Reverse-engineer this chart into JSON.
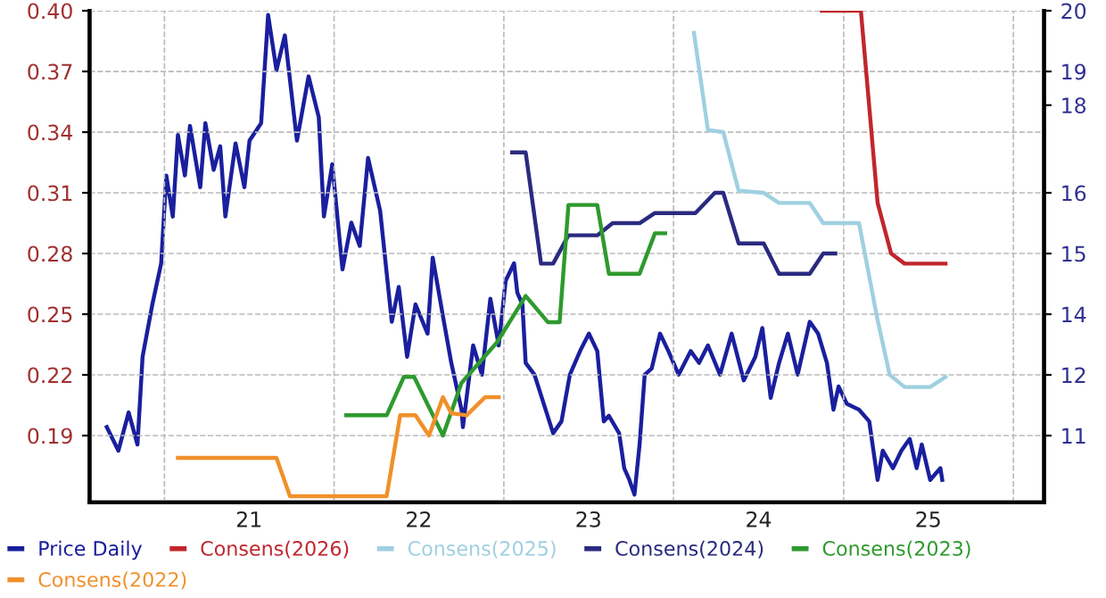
{
  "chart_data": {
    "type": "line",
    "xlim": [
      "2020-07-24",
      "2026-03-08"
    ],
    "xticks": [
      {
        "value": "2021-01-01",
        "label": null
      },
      {
        "value": "2021-07-02",
        "label": "21"
      },
      {
        "value": "2022-01-01",
        "label": null
      },
      {
        "value": "2022-07-02",
        "label": "22"
      },
      {
        "value": "2023-01-01",
        "label": null
      },
      {
        "value": "2023-07-02",
        "label": "23"
      },
      {
        "value": "2024-01-01",
        "label": null
      },
      {
        "value": "2024-07-02",
        "label": "24"
      },
      {
        "value": "2025-01-01",
        "label": null
      },
      {
        "value": "2025-07-02",
        "label": "25"
      },
      {
        "value": "2026-01-01",
        "label": null
      }
    ],
    "ylim": [
      0.157,
      0.4
    ],
    "yticks": [
      0.19,
      0.22,
      0.25,
      0.28,
      0.31,
      0.34,
      0.37,
      {
        "value": 0.4,
        "label": "0.40"
      }
    ],
    "y2lim": [
      9.586,
      20
    ],
    "y2ticks": [
      {
        "value": 11,
        "label": "11"
      },
      {
        "value": 12.286,
        "label": "12"
      },
      {
        "value": 13.571,
        "label": "14"
      },
      {
        "value": 14.857,
        "label": "15"
      },
      {
        "value": 16.143,
        "label": "16"
      },
      {
        "value": 18,
        "label": "18"
      },
      {
        "value": 18.714,
        "label": "19"
      },
      {
        "value": 20,
        "label": "20"
      }
    ],
    "grid": true,
    "legend": "bottom",
    "line_style": "solid",
    "series": [
      {
        "name": "Price Daily",
        "color": "#1a1f9e",
        "axis": "y2",
        "x": [
          "2020-08-30",
          "2020-09-24",
          "2020-10-16",
          "2020-11-04",
          "2020-11-15",
          "2020-12-06",
          "2020-12-25",
          "2021-01-05",
          "2021-01-19",
          "2021-01-30",
          "2021-02-14",
          "2021-02-25",
          "2021-03-19",
          "2021-03-30",
          "2021-04-17",
          "2021-05-01",
          "2021-05-12",
          "2021-06-03",
          "2021-06-22",
          "2021-07-03",
          "2021-07-28",
          "2021-08-12",
          "2021-08-30",
          "2021-09-17",
          "2021-10-13",
          "2021-11-07",
          "2021-11-29",
          "2021-12-10",
          "2021-12-28",
          "2022-01-19",
          "2022-02-07",
          "2022-02-25",
          "2022-03-15",
          "2022-04-10",
          "2022-05-05",
          "2022-05-20",
          "2022-06-07",
          "2022-06-25",
          "2022-07-21",
          "2022-08-01",
          "2022-08-23",
          "2022-09-10",
          "2022-10-02",
          "2022-10-05",
          "2022-10-27",
          "2022-11-15",
          "2022-12-03",
          "2022-12-21",
          "2023-01-05",
          "2023-01-23",
          "2023-01-30",
          "2023-02-10",
          "2023-02-17",
          "2023-03-08",
          "2023-04-17",
          "2023-05-05",
          "2023-05-23",
          "2023-06-14",
          "2023-07-03",
          "2023-07-21",
          "2023-08-04",
          "2023-08-15",
          "2023-09-06",
          "2023-09-17",
          "2023-09-28",
          "2023-10-09",
          "2023-10-20",
          "2023-10-31",
          "2023-11-15",
          "2023-12-03",
          "2023-12-21",
          "2024-01-12",
          "2024-02-07",
          "2024-02-25",
          "2024-03-15",
          "2024-04-10",
          "2024-05-05",
          "2024-05-31",
          "2024-06-25",
          "2024-07-10",
          "2024-07-28",
          "2024-08-15",
          "2024-09-03",
          "2024-09-24",
          "2024-10-20",
          "2024-11-07",
          "2024-11-26",
          "2024-12-10",
          "2024-12-21",
          "2025-01-08",
          "2025-02-03",
          "2025-02-25",
          "2025-03-15",
          "2025-03-26",
          "2025-04-17",
          "2025-05-05",
          "2025-05-23",
          "2025-06-07",
          "2025-06-18",
          "2025-07-06",
          "2025-07-28",
          "2025-08-01"
        ],
        "values": [
          11.18,
          10.68,
          11.49,
          10.81,
          12.67,
          13.78,
          14.65,
          16.51,
          15.64,
          17.37,
          16.51,
          17.56,
          16.26,
          17.62,
          16.63,
          17.13,
          15.64,
          17.19,
          16.26,
          17.25,
          17.62,
          19.91,
          18.74,
          19.48,
          17.25,
          18.61,
          17.74,
          15.64,
          16.75,
          14.52,
          15.51,
          15.02,
          16.88,
          15.76,
          13.41,
          14.15,
          12.67,
          13.78,
          13.16,
          14.77,
          13.53,
          12.54,
          11.55,
          11.18,
          12.91,
          12.29,
          13.9,
          12.91,
          14.28,
          14.65,
          14.03,
          13.78,
          12.54,
          12.29,
          11.05,
          11.3,
          12.29,
          12.79,
          13.16,
          12.79,
          11.3,
          11.42,
          11.05,
          10.31,
          10.06,
          9.75,
          10.81,
          12.29,
          12.42,
          13.16,
          12.79,
          12.29,
          12.79,
          12.54,
          12.91,
          12.29,
          13.16,
          12.17,
          12.67,
          13.28,
          11.8,
          12.54,
          13.16,
          12.29,
          13.41,
          13.16,
          12.54,
          11.55,
          12.04,
          11.67,
          11.55,
          11.3,
          10.06,
          10.68,
          10.31,
          10.68,
          10.93,
          10.31,
          10.81,
          10.06,
          10.31,
          10.06
        ]
      },
      {
        "name": "Consens(2026)",
        "color": "#c0272d",
        "x": [
          "2024-11-15",
          "2025-02-07",
          "2025-03-15",
          "2025-04-13",
          "2025-05-12",
          "2025-08-08"
        ],
        "values": [
          0.4,
          0.4,
          0.305,
          0.28,
          0.275,
          0.275
        ]
      },
      {
        "name": "Consens(2025)",
        "color": "#9fd0e0",
        "x": [
          "2024-02-14",
          "2024-03-15",
          "2024-04-17",
          "2024-05-20",
          "2024-07-13",
          "2024-08-15",
          "2024-10-20",
          "2024-11-18",
          "2025-02-03",
          "2025-03-15",
          "2025-04-10",
          "2025-05-12",
          "2025-07-06",
          "2025-08-08"
        ],
        "values": [
          0.389,
          0.341,
          0.34,
          0.311,
          0.31,
          0.305,
          0.305,
          0.295,
          0.295,
          0.247,
          0.22,
          0.214,
          0.214,
          0.219
        ]
      },
      {
        "name": "Consens(2024)",
        "color": "#2a2a80",
        "x": [
          "2023-01-19",
          "2023-02-17",
          "2023-03-22",
          "2023-04-17",
          "2023-05-20",
          "2023-07-21",
          "2023-08-23",
          "2023-10-20",
          "2023-11-22",
          "2024-02-17",
          "2024-03-30",
          "2024-04-17",
          "2024-05-20",
          "2024-07-13",
          "2024-08-15",
          "2024-10-20",
          "2024-11-18",
          "2024-12-14"
        ],
        "values": [
          0.33,
          0.33,
          0.275,
          0.275,
          0.289,
          0.289,
          0.295,
          0.295,
          0.3,
          0.3,
          0.31,
          0.31,
          0.285,
          0.285,
          0.27,
          0.27,
          0.28,
          0.28
        ]
      },
      {
        "name": "Consens(2023)",
        "color": "#2e9a2e",
        "x": [
          "2022-01-27",
          "2022-04-24",
          "2022-05-31",
          "2022-06-22",
          "2022-08-23",
          "2022-10-02",
          "2022-12-17",
          "2023-02-17",
          "2023-04-06",
          "2023-05-01",
          "2023-05-20",
          "2023-07-21",
          "2023-08-15",
          "2023-10-20",
          "2023-11-22",
          "2023-12-14"
        ],
        "values": [
          0.2,
          0.2,
          0.219,
          0.219,
          0.19,
          0.216,
          0.236,
          0.259,
          0.246,
          0.246,
          0.304,
          0.304,
          0.27,
          0.27,
          0.29,
          0.29
        ]
      },
      {
        "name": "Consens(2022)",
        "color": "#f0902a",
        "x": [
          "2021-01-30",
          "2021-08-30",
          "2021-09-28",
          "2022-04-24",
          "2022-05-23",
          "2022-06-25",
          "2022-07-24",
          "2022-08-23",
          "2022-09-10",
          "2022-10-13",
          "2022-11-22",
          "2022-12-21"
        ],
        "values": [
          0.179,
          0.179,
          0.16,
          0.16,
          0.2,
          0.2,
          0.19,
          0.209,
          0.201,
          0.2,
          0.209,
          0.209
        ]
      }
    ]
  }
}
